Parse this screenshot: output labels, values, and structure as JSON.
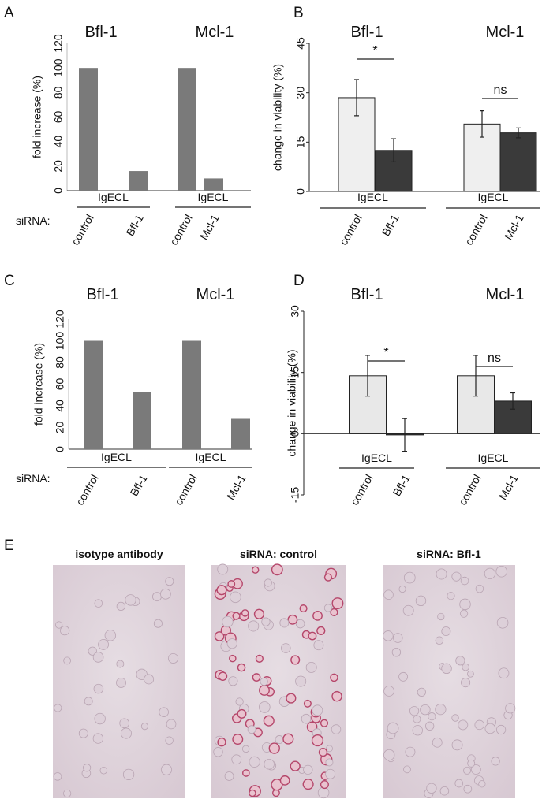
{
  "chart_data": [
    {
      "type": "bar",
      "panel": "A",
      "ylabel": "fold increase (%)",
      "ylim": [
        0,
        120
      ],
      "yticks": [
        0,
        20,
        40,
        60,
        80,
        100,
        120
      ],
      "row_label": "siRNA:",
      "groups": [
        {
          "title": "Bfl-1",
          "label": "IgECL"
        },
        {
          "title": "Mcl-1",
          "label": "IgECL"
        }
      ],
      "categories": [
        "control",
        "Bfl-1",
        "control",
        "Mcl-1"
      ],
      "values": [
        100,
        16,
        100,
        10
      ],
      "colors": [
        "#7a7a7a",
        "#7a7a7a",
        "#7a7a7a",
        "#7a7a7a"
      ]
    },
    {
      "type": "bar",
      "panel": "B",
      "ylabel": "change in viability (%)",
      "ylim": [
        0,
        45
      ],
      "yticks": [
        0,
        15,
        30,
        45
      ],
      "groups": [
        {
          "title": "Bfl-1",
          "label": "IgECL",
          "annotation": "*"
        },
        {
          "title": "Mcl-1",
          "label": "IgECL",
          "annotation": "ns"
        }
      ],
      "categories": [
        "control",
        "Bfl-1",
        "control",
        "Mcl-1"
      ],
      "values": [
        28.5,
        12.5,
        20.5,
        17.8
      ],
      "errors": [
        5.5,
        3.5,
        4,
        1.5
      ],
      "colors": [
        "#efefef",
        "#3a3a3a",
        "#efefef",
        "#3a3a3a"
      ]
    },
    {
      "type": "bar",
      "panel": "C",
      "ylabel": "fold increase (%)",
      "ylim": [
        0,
        120
      ],
      "yticks": [
        0,
        20,
        40,
        60,
        80,
        100,
        120
      ],
      "row_label": "siRNA:",
      "groups": [
        {
          "title": "Bfl-1",
          "label": "IgECL"
        },
        {
          "title": "Mcl-1",
          "label": "IgECL"
        }
      ],
      "categories": [
        "control",
        "Bfl-1",
        "control",
        "Mcl-1"
      ],
      "values": [
        100,
        53,
        100,
        28
      ],
      "colors": [
        "#7a7a7a",
        "#7a7a7a",
        "#7a7a7a",
        "#7a7a7a"
      ]
    },
    {
      "type": "bar",
      "panel": "D",
      "ylabel": "change in viability (%)",
      "ylim": [
        -15,
        30
      ],
      "yticks": [
        -15,
        0,
        15,
        30
      ],
      "groups": [
        {
          "title": "Bfl-1",
          "label": "IgECL",
          "annotation": "*"
        },
        {
          "title": "Mcl-1",
          "label": "IgECL",
          "annotation": "ns"
        }
      ],
      "categories": [
        "control",
        "Bfl-1",
        "control",
        "Mcl-1"
      ],
      "values": [
        14.2,
        -0.3,
        14.2,
        8
      ],
      "errors": [
        5,
        4,
        5,
        2
      ],
      "colors": [
        "#e8e8e8",
        "#3a3a3a",
        "#e8e8e8",
        "#3a3a3a"
      ]
    }
  ],
  "panel_e": {
    "panel": "E",
    "images": [
      {
        "title": "isotype antibody"
      },
      {
        "title": "siRNA: control"
      },
      {
        "title": "siRNA: Bfl-1"
      }
    ]
  }
}
